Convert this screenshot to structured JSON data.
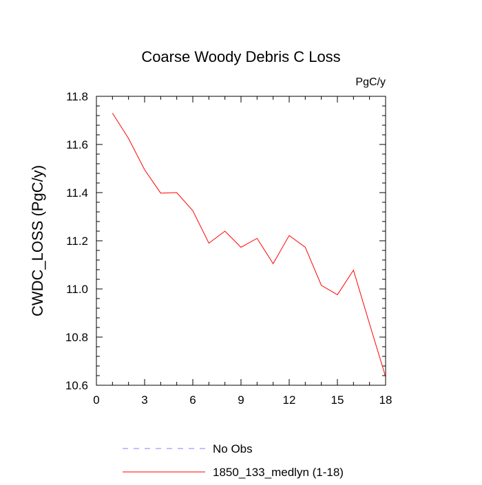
{
  "chart_data": {
    "type": "line",
    "title": "Coarse Woody Debris C Loss",
    "units": "PgC/y",
    "ylabel": "CWDC_LOSS  (PgC/y)",
    "xlabel": "",
    "xlim": [
      0,
      18
    ],
    "ylim": [
      10.6,
      11.8
    ],
    "xticks": [
      0,
      3,
      6,
      9,
      12,
      15,
      18
    ],
    "xtick_labels": [
      "0",
      "3",
      "6",
      "9",
      "12",
      "15",
      "18"
    ],
    "yticks": [
      10.6,
      10.8,
      11.0,
      11.2,
      11.4,
      11.6,
      11.8
    ],
    "ytick_labels": [
      "10.6",
      "10.8",
      "11.0",
      "11.2",
      "11.4",
      "11.6",
      "11.8"
    ],
    "x_minor_step": 1,
    "y_minor_step": 0.04,
    "grid": false,
    "series": [
      {
        "name": "1850_133_medlyn (1-18)",
        "color": "#ff0000",
        "style": "solid",
        "x": [
          1,
          2,
          3,
          4,
          5,
          6,
          7,
          8,
          9,
          10,
          11,
          12,
          13,
          14,
          15,
          16,
          17,
          18
        ],
        "values": [
          11.73,
          11.625,
          11.495,
          11.398,
          11.4,
          11.325,
          11.19,
          11.24,
          11.173,
          11.21,
          11.105,
          11.222,
          11.173,
          11.015,
          10.976,
          11.078,
          10.855,
          10.635
        ]
      }
    ],
    "legend": {
      "placement": "bottom",
      "entries": [
        {
          "label": "No Obs",
          "color": "#8080ff",
          "style": "dashed"
        },
        {
          "label": "1850_133_medlyn (1-18)",
          "color": "#ff0000",
          "style": "solid"
        }
      ]
    }
  }
}
